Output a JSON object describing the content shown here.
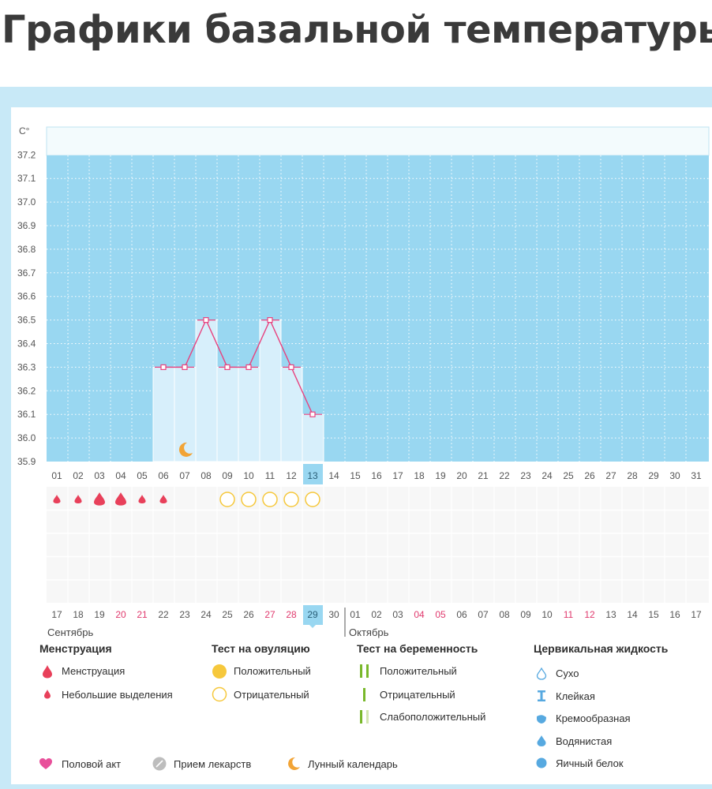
{
  "page": {
    "title": "Графики базальной температуры"
  },
  "chart_data": {
    "type": "line",
    "unit_label": "C°",
    "ylim": [
      35.9,
      37.2
    ],
    "yticks": [
      "37.2",
      "37.1",
      "37.0",
      "36.9",
      "36.8",
      "36.7",
      "36.6",
      "36.5",
      "36.4",
      "36.3",
      "36.2",
      "36.1",
      "36.0",
      "35.9"
    ],
    "cycle_day_labels": [
      "01",
      "02",
      "03",
      "04",
      "05",
      "06",
      "07",
      "08",
      "09",
      "10",
      "11",
      "12",
      "13",
      "14",
      "15",
      "16",
      "17",
      "18",
      "19",
      "20",
      "21",
      "22",
      "23",
      "24",
      "25",
      "26",
      "27",
      "28",
      "29",
      "30",
      "31"
    ],
    "highlighted_day": "13",
    "calendar_dates": [
      "17",
      "18",
      "19",
      "20",
      "21",
      "22",
      "23",
      "24",
      "25",
      "26",
      "27",
      "28",
      "29",
      "30",
      "01",
      "02",
      "03",
      "04",
      "05",
      "06",
      "07",
      "08",
      "09",
      "10",
      "11",
      "12",
      "13",
      "14",
      "15",
      "16",
      "17"
    ],
    "weekend_dates": [
      "20",
      "21",
      "27",
      "28",
      "04",
      "05",
      "11",
      "12"
    ],
    "weekend_flags": [
      false,
      false,
      false,
      true,
      true,
      false,
      false,
      false,
      false,
      false,
      true,
      true,
      false,
      false,
      false,
      false,
      false,
      true,
      true,
      false,
      false,
      false,
      false,
      false,
      true,
      true,
      false,
      false,
      false,
      false,
      false
    ],
    "highlighted_date": "29",
    "months": [
      "Сентябрь",
      "Октябрь"
    ],
    "series": [
      {
        "x": [
          "06",
          "07",
          "08",
          "09",
          "10",
          "11",
          "12",
          "13"
        ],
        "values": [
          36.3,
          36.3,
          36.5,
          36.3,
          36.3,
          36.5,
          36.3,
          36.1
        ]
      }
    ],
    "grid": true,
    "markers": {
      "menstruation": [
        {
          "day": "01",
          "kind": "small"
        },
        {
          "day": "02",
          "kind": "small"
        },
        {
          "day": "03",
          "kind": "large"
        },
        {
          "day": "04",
          "kind": "large"
        },
        {
          "day": "05",
          "kind": "small"
        },
        {
          "day": "06",
          "kind": "small"
        }
      ],
      "ovulation_test_negative": [
        "09",
        "10",
        "11",
        "12",
        "13"
      ],
      "lunar_calendar": [
        "07"
      ]
    }
  },
  "legend": {
    "menstruation": {
      "title": "Менструация",
      "items": [
        "Менструация",
        "Небольшие выделения"
      ]
    },
    "ovulation_test": {
      "title": "Тест на овуляцию",
      "items": [
        "Положительный",
        "Отрицательный"
      ]
    },
    "pregnancy_test": {
      "title": "Тест на беременность",
      "items": [
        "Положительный",
        "Отрицательный",
        "Слабоположительный"
      ]
    },
    "cervical_fluid": {
      "title": "Цервикальная жидкость",
      "items": [
        "Сухо",
        "Клейкая",
        "Кремообразная",
        "Водянистая",
        "Яичный белок"
      ]
    },
    "other": [
      "Половой акт",
      "Прием лекарств",
      "Лунный календарь"
    ]
  },
  "colors": {
    "background_area": "#99d7f1",
    "bar_fill": "#d7effb",
    "line": "#e8437f",
    "drop": "#e8405a",
    "ovulation_positive": "#f6c83c",
    "ovulation_negative": "#f6c83c",
    "pregnancy_positive": "#79b82b",
    "pregnancy_weak": "#d4e6b1",
    "heart": "#e84f9a",
    "pill": "#bdbdbd",
    "moon": "#f2a436",
    "weekend": "#e03a6e",
    "fluid": "#57a9e0"
  }
}
